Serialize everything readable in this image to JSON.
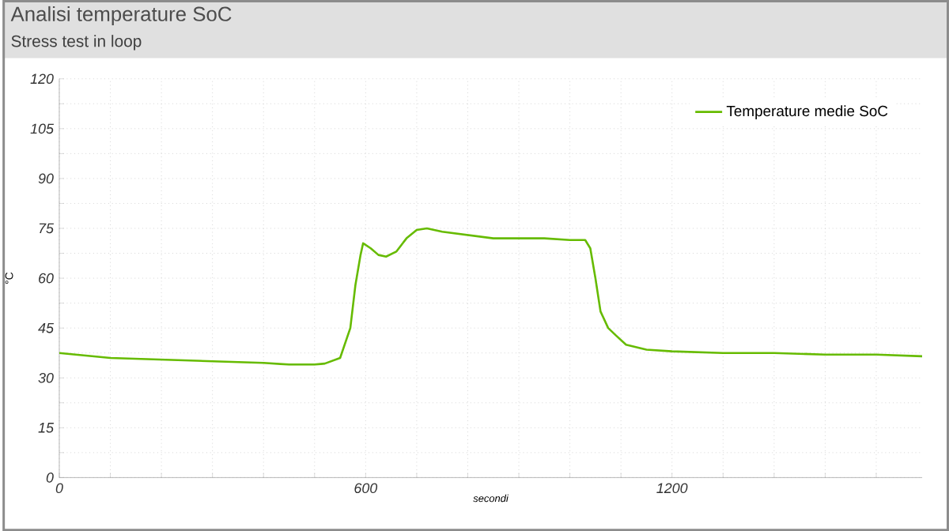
{
  "chart_data": {
    "type": "line",
    "title": "Analisi temperature SoC",
    "subtitle": "Stress test in loop",
    "xlabel": "secondi",
    "ylabel": "°C",
    "x": [
      0,
      100,
      200,
      300,
      400,
      450,
      500,
      520,
      550,
      570,
      580,
      590,
      595,
      610,
      625,
      640,
      660,
      680,
      700,
      720,
      750,
      800,
      850,
      900,
      950,
      1000,
      1030,
      1040,
      1050,
      1060,
      1075,
      1090,
      1110,
      1150,
      1200,
      1300,
      1400,
      1500,
      1600,
      1690
    ],
    "series": [
      {
        "name": "Temperature medie SoC",
        "color": "#66bb00",
        "values": [
          37.5,
          36,
          35.5,
          35,
          34.5,
          34,
          34,
          34.3,
          36,
          45,
          58,
          67,
          70.5,
          69,
          67,
          66.5,
          68,
          72,
          74.5,
          75,
          74,
          73,
          72,
          72,
          72,
          71.5,
          71.5,
          69,
          60,
          50,
          45,
          42.8,
          40,
          38.5,
          38,
          37.5,
          37.5,
          37,
          37,
          36.5
        ]
      }
    ],
    "xlim": [
      0,
      1690
    ],
    "ylim": [
      0,
      120
    ],
    "xticks": [
      0,
      {
        "value": 100,
        "label": null
      },
      {
        "value": 200,
        "label": null
      },
      {
        "value": 300,
        "label": null
      },
      {
        "value": 400,
        "label": null
      },
      {
        "value": 500,
        "label": null
      },
      600,
      {
        "value": 700,
        "label": null
      },
      {
        "value": 800,
        "label": null
      },
      {
        "value": 900,
        "label": null
      },
      {
        "value": 1000,
        "label": null
      },
      {
        "value": 1100,
        "label": null
      },
      1200,
      {
        "value": 1300,
        "label": null
      },
      {
        "value": 1400,
        "label": null
      },
      {
        "value": 1500,
        "label": null
      },
      {
        "value": 1600,
        "label": null
      }
    ],
    "yticks": [
      0,
      {
        "value": 7.5,
        "label": null
      },
      15,
      {
        "value": 22.5,
        "label": null
      },
      30,
      {
        "value": 37.5,
        "label": null
      },
      45,
      {
        "value": 52.5,
        "label": null
      },
      60,
      {
        "value": 67.5,
        "label": null
      },
      75,
      {
        "value": 82.5,
        "label": null
      },
      90,
      {
        "value": 97.5,
        "label": null
      },
      105,
      {
        "value": 112.5,
        "label": null
      },
      120
    ],
    "grid": true,
    "legend": "top right",
    "marker": "none",
    "line_style": "solid"
  }
}
